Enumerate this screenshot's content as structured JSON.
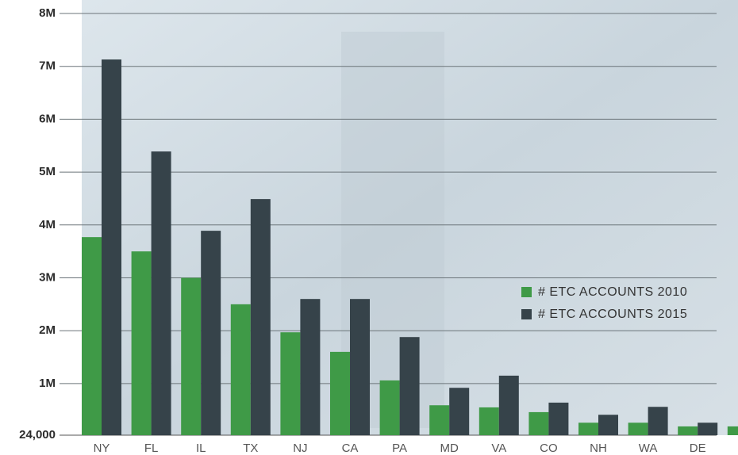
{
  "chart_data": {
    "type": "bar",
    "categories": [
      "NY",
      "FL",
      "IL",
      "TX",
      "NJ",
      "CA",
      "PA",
      "MD",
      "VA",
      "CO",
      "NH",
      "WA",
      "DE",
      null
    ],
    "series": [
      {
        "name": "# ETC ACCOUNTS 2010",
        "color": "#3f9a47",
        "values": [
          3770000,
          3500000,
          3000000,
          2500000,
          1970000,
          1600000,
          1060000,
          590000,
          550000,
          460000,
          260000,
          260000,
          190000,
          190000
        ]
      },
      {
        "name": "# ETC ACCOUNTS 2015",
        "color": "#36434a",
        "values": [
          7130000,
          5390000,
          3890000,
          4490000,
          2600000,
          2600000,
          1880000,
          920000,
          1150000,
          640000,
          410000,
          560000,
          260000,
          null
        ]
      }
    ],
    "ylim": [
      24000,
      8000000
    ],
    "yticks": [
      {
        "value": 24000,
        "label": "24,000"
      },
      {
        "value": 1000000,
        "label": "1M"
      },
      {
        "value": 2000000,
        "label": "2M"
      },
      {
        "value": 3000000,
        "label": "3M"
      },
      {
        "value": 4000000,
        "label": "4M"
      },
      {
        "value": 5000000,
        "label": "5M"
      },
      {
        "value": 6000000,
        "label": "6M"
      },
      {
        "value": 7000000,
        "label": "7M"
      },
      {
        "value": 8000000,
        "label": "8M"
      }
    ],
    "grid": true,
    "legend": "right"
  }
}
